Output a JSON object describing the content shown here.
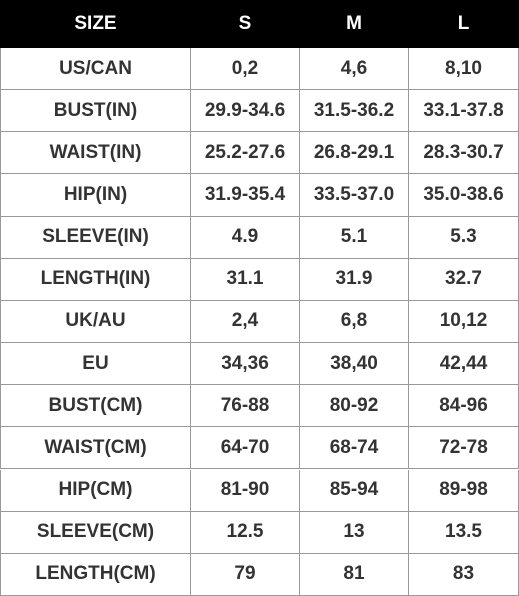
{
  "table": {
    "header": [
      "SIZE",
      "S",
      "M",
      "L"
    ],
    "rows": [
      [
        "US/CAN",
        "0,2",
        "4,6",
        "8,10"
      ],
      [
        "BUST(IN)",
        "29.9-34.6",
        "31.5-36.2",
        "33.1-37.8"
      ],
      [
        "WAIST(IN)",
        "25.2-27.6",
        "26.8-29.1",
        "28.3-30.7"
      ],
      [
        "HIP(IN)",
        "31.9-35.4",
        "33.5-37.0",
        "35.0-38.6"
      ],
      [
        "SLEEVE(IN)",
        "4.9",
        "5.1",
        "5.3"
      ],
      [
        "LENGTH(IN)",
        "31.1",
        "31.9",
        "32.7"
      ],
      [
        "UK/AU",
        "2,4",
        "6,8",
        "10,12"
      ],
      [
        "EU",
        "34,36",
        "38,40",
        "42,44"
      ],
      [
        "BUST(CM)",
        "76-88",
        "80-92",
        "84-96"
      ],
      [
        "WAIST(CM)",
        "64-70",
        "68-74",
        "72-78"
      ],
      [
        "HIP(CM)",
        "81-90",
        "85-94",
        "89-98"
      ],
      [
        "SLEEVE(CM)",
        "12.5",
        "13",
        "13.5"
      ],
      [
        "LENGTH(CM)",
        "79",
        "81",
        "83"
      ]
    ]
  }
}
